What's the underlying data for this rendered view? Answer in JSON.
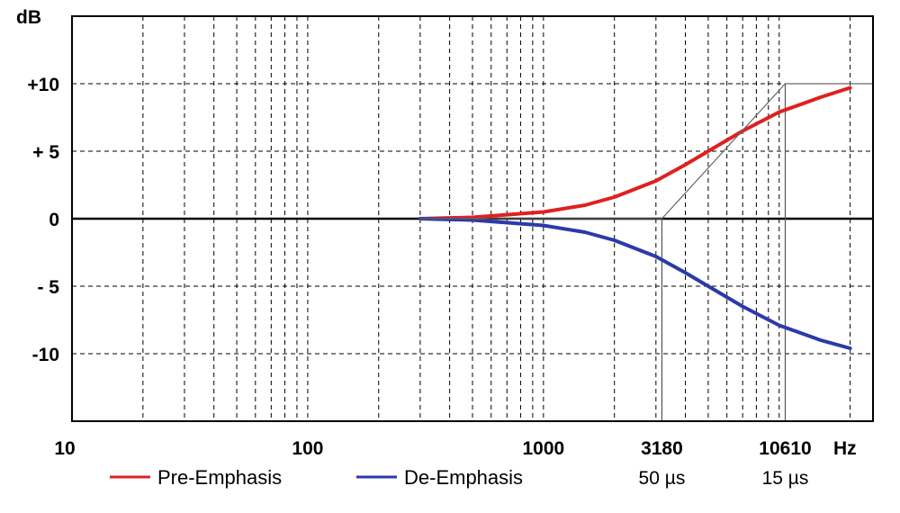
{
  "chart_data": {
    "type": "line",
    "title": "",
    "xlabel": "Hz",
    "ylabel": "dB",
    "x_scale": "log",
    "xlim": [
      10,
      25000
    ],
    "ylim": [
      -15,
      15
    ],
    "grid": true,
    "y_ticks": [
      {
        "value": 10,
        "label": "+10"
      },
      {
        "value": 5,
        "label": "+ 5"
      },
      {
        "value": 0,
        "label": "0"
      },
      {
        "value": -5,
        "label": "- 5"
      },
      {
        "value": -10,
        "label": "-10"
      }
    ],
    "x_ticks": [
      {
        "value": 10,
        "label": "10"
      },
      {
        "value": 100,
        "label": "100"
      },
      {
        "value": 1000,
        "label": "1000"
      },
      {
        "value": 3180,
        "label": "3180",
        "sublabel": "50 µs"
      },
      {
        "value": 10610,
        "label": "10610",
        "sublabel": "15 µs"
      }
    ],
    "series": [
      {
        "name": "Pre-Emphasis",
        "color": "#e02020",
        "x": [
          300,
          500,
          1000,
          1500,
          2000,
          3000,
          4000,
          5000,
          7000,
          10000,
          15000,
          20000
        ],
        "y": [
          0.0,
          0.1,
          0.5,
          1.0,
          1.6,
          2.8,
          4.0,
          5.0,
          6.5,
          7.9,
          9.0,
          9.7
        ]
      },
      {
        "name": "De-Emphasis",
        "color": "#2b3aa8",
        "x": [
          300,
          500,
          1000,
          1500,
          2000,
          3000,
          4000,
          5000,
          7000,
          10000,
          15000,
          20000
        ],
        "y": [
          0.0,
          -0.1,
          -0.5,
          -1.0,
          -1.6,
          -2.8,
          -4.0,
          -5.0,
          -6.5,
          -7.9,
          -9.0,
          -9.6
        ]
      },
      {
        "name": "",
        "color": "#666666",
        "x": [
          300,
          3180,
          10610,
          25000
        ],
        "y": [
          0,
          0,
          10,
          10
        ]
      }
    ]
  }
}
